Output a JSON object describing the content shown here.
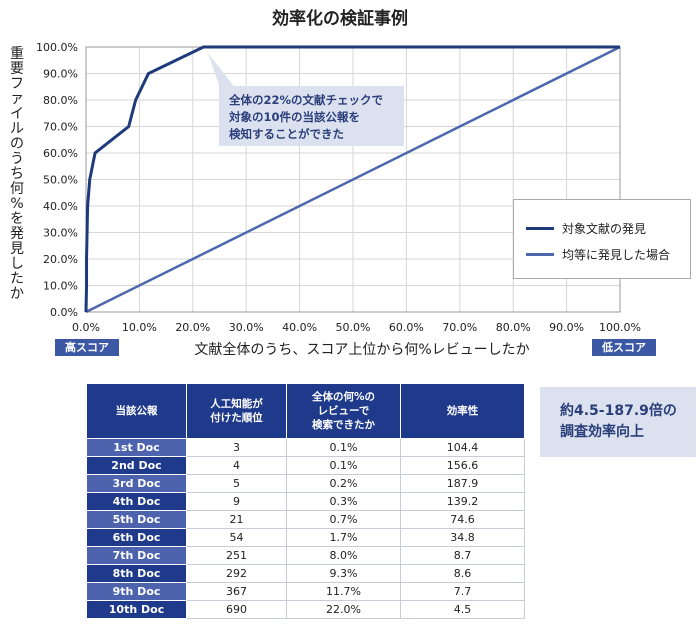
{
  "chart_data": {
    "type": "line",
    "title": "効率化の検証事例",
    "xlabel": "文献全体のうち、スコア上位から何%レビューしたか",
    "ylabel": "重要ファイルのうち何%を発見したか",
    "xlim": [
      0,
      100
    ],
    "ylim": [
      0,
      100
    ],
    "x_ticks": [
      "0.0%",
      "10.0%",
      "20.0%",
      "30.0%",
      "40.0%",
      "50.0%",
      "60.0%",
      "70.0%",
      "80.0%",
      "90.0%",
      "100.0%"
    ],
    "y_ticks": [
      "0.0%",
      "10.0%",
      "20.0%",
      "30.0%",
      "40.0%",
      "50.0%",
      "60.0%",
      "70.0%",
      "80.0%",
      "90.0%",
      "100.0%"
    ],
    "grid": true,
    "legend_position": "right",
    "series": [
      {
        "name": "対象文献の発見",
        "color": "#1f3a7a",
        "points": [
          [
            0,
            0
          ],
          [
            0.1,
            10
          ],
          [
            0.1,
            20
          ],
          [
            0.2,
            30
          ],
          [
            0.3,
            40
          ],
          [
            0.7,
            50
          ],
          [
            1.7,
            60
          ],
          [
            8.0,
            70
          ],
          [
            9.3,
            80
          ],
          [
            11.7,
            90
          ],
          [
            22.0,
            100
          ],
          [
            100,
            100
          ]
        ]
      },
      {
        "name": "均等に発見した場合",
        "color": "#4d67ad",
        "points": [
          [
            0,
            0
          ],
          [
            100,
            100
          ]
        ]
      }
    ]
  },
  "callout_top": [
    "全体の22%の文献チェックで",
    "対象の10件の当該公報を",
    "検知することができた"
  ],
  "callout_right": [
    "約4.5-187.9倍の",
    "調査効率向上"
  ],
  "badge_high": "高スコア",
  "badge_low": "低スコア",
  "table": {
    "headers": [
      "当該公報",
      "人工知能が\n付けた順位",
      "全体の何%の\nレビューで\n検索できたか",
      "効率性"
    ],
    "rows": [
      [
        "1st Doc",
        "3",
        "0.1%",
        "104.4"
      ],
      [
        "2nd Doc",
        "4",
        "0.1%",
        "156.6"
      ],
      [
        "3rd Doc",
        "5",
        "0.2%",
        "187.9"
      ],
      [
        "4th Doc",
        "9",
        "0.3%",
        "139.2"
      ],
      [
        "5th Doc",
        "21",
        "0.7%",
        "74.6"
      ],
      [
        "6th Doc",
        "54",
        "1.7%",
        "34.8"
      ],
      [
        "7th Doc",
        "251",
        "8.0%",
        "8.7"
      ],
      [
        "8th Doc",
        "292",
        "9.3%",
        "8.6"
      ],
      [
        "9th Doc",
        "367",
        "11.7%",
        "7.7"
      ],
      [
        "10th Doc",
        "690",
        "22.0%",
        "4.5"
      ]
    ]
  }
}
